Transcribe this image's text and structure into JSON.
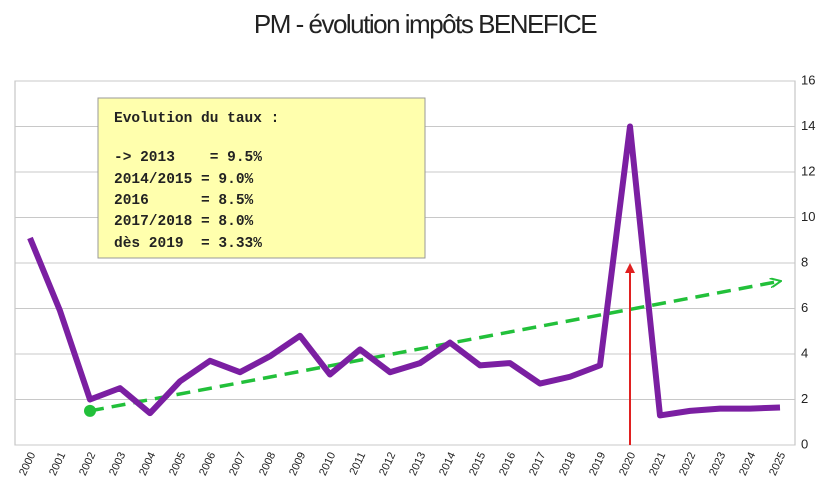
{
  "chart_data": {
    "type": "line",
    "title": "PM - évolution impôts BENEFICE",
    "categories": [
      "2000",
      "2001",
      "2002",
      "2003",
      "2004",
      "2005",
      "2006",
      "2007",
      "2008",
      "2009",
      "2010",
      "2011",
      "2012",
      "2013",
      "2014",
      "2015",
      "2016",
      "2017",
      "2018",
      "2019",
      "2020",
      "2021",
      "2022",
      "2023",
      "2024",
      "2025"
    ],
    "series": [
      {
        "name": "impôts BENEFICE",
        "color": "#7b1fa2",
        "values": [
          9.1,
          5.9,
          2.0,
          2.5,
          1.4,
          2.8,
          3.7,
          3.2,
          3.9,
          4.8,
          3.1,
          4.2,
          3.2,
          3.6,
          4.5,
          3.5,
          3.6,
          2.7,
          3.0,
          3.5,
          14.0,
          1.3,
          1.5,
          1.6,
          1.6,
          1.65
        ]
      }
    ],
    "trend": {
      "color": "#22c03a",
      "categories": [
        "2002",
        "2025"
      ],
      "values": [
        1.5,
        7.2
      ]
    },
    "arrow": {
      "color": "#e02020",
      "category": "2020",
      "value": 8
    },
    "annotation": [
      "Evolution du taux :",
      "-> 2013    = 9.5%",
      "2014/2015 = 9.0%",
      "2016      = 8.5%",
      "2017/2018 = 8.0%",
      "dès 2019  = 3.33%"
    ],
    "ylim": [
      0,
      16
    ],
    "yticks": [
      0,
      2,
      4,
      6,
      8,
      10,
      12,
      14,
      16
    ],
    "grid": true
  }
}
